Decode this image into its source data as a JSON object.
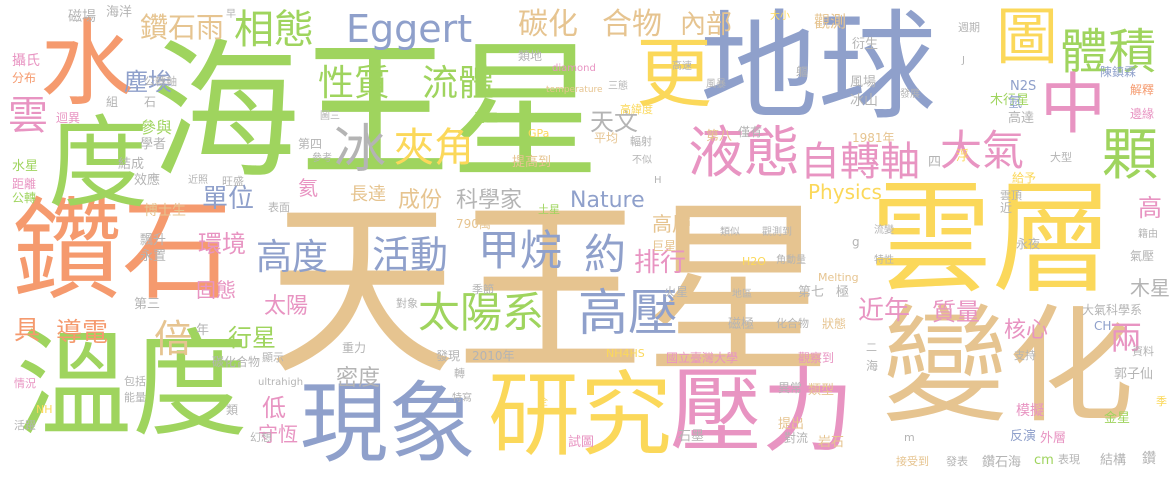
{
  "colors": {
    "orange": "#f59a6e",
    "green": "#9fd45e",
    "blue": "#8fa0cb",
    "pink": "#e894c2",
    "tan": "#e6c490",
    "yellow": "#fbd85a",
    "gray": "#b4b4b4"
  },
  "words": [
    {
      "t": "天王星",
      "c": "tan"
    },
    {
      "t": "海王星",
      "c": "green"
    },
    {
      "t": "地球",
      "c": "blue"
    },
    {
      "t": "雲層",
      "c": "yellow"
    },
    {
      "t": "鑽石",
      "c": "orange"
    },
    {
      "t": "變化",
      "c": "tan"
    },
    {
      "t": "溫度",
      "c": "green"
    },
    {
      "t": "度",
      "c": "green"
    },
    {
      "t": "水",
      "c": "orange"
    },
    {
      "t": "研究",
      "c": "yellow"
    },
    {
      "t": "壓力",
      "c": "pink"
    },
    {
      "t": "現象",
      "c": "blue"
    },
    {
      "t": "更",
      "c": "yellow"
    },
    {
      "t": "圖",
      "c": "yellow"
    },
    {
      "t": "體積",
      "c": "green"
    },
    {
      "t": "中",
      "c": "pink"
    },
    {
      "t": "液態",
      "c": "pink"
    },
    {
      "t": "自轉軸",
      "c": "pink"
    },
    {
      "t": "大氣",
      "c": "pink"
    },
    {
      "t": "顆",
      "c": "green"
    },
    {
      "t": "太陽系",
      "c": "green"
    },
    {
      "t": "高壓",
      "c": "blue"
    },
    {
      "t": "甲烷",
      "c": "blue"
    },
    {
      "t": "活動",
      "c": "blue"
    },
    {
      "t": "高度",
      "c": "blue"
    },
    {
      "t": "相態",
      "c": "green"
    },
    {
      "t": "Eggert",
      "c": "blue"
    },
    {
      "t": "碳化",
      "c": "tan"
    },
    {
      "t": "合物",
      "c": "tan"
    },
    {
      "t": "內部",
      "c": "tan"
    },
    {
      "t": "性質",
      "c": "green"
    },
    {
      "t": "流體",
      "c": "green"
    },
    {
      "t": "冰",
      "c": "gray"
    },
    {
      "t": "夾角",
      "c": "yellow"
    },
    {
      "t": "天文",
      "c": "gray"
    },
    {
      "t": "鑽石雨",
      "c": "tan"
    },
    {
      "t": "塵埃",
      "c": "blue"
    },
    {
      "t": "雲",
      "c": "pink"
    },
    {
      "t": "倍",
      "c": "tan"
    },
    {
      "t": "單位",
      "c": "blue"
    },
    {
      "t": "環境",
      "c": "pink"
    },
    {
      "t": "固態",
      "c": "pink"
    },
    {
      "t": "太陽",
      "c": "pink"
    },
    {
      "t": "行星",
      "c": "green"
    },
    {
      "t": "具",
      "c": "orange"
    },
    {
      "t": "導電",
      "c": "orange"
    },
    {
      "t": "約",
      "c": "blue"
    },
    {
      "t": "排行",
      "c": "pink"
    },
    {
      "t": "近年",
      "c": "pink"
    },
    {
      "t": "質量",
      "c": "pink"
    },
    {
      "t": "核心",
      "c": "pink"
    },
    {
      "t": "兩",
      "c": "pink"
    },
    {
      "t": "成份",
      "c": "tan"
    },
    {
      "t": "科學家",
      "c": "gray"
    },
    {
      "t": "Nature",
      "c": "blue"
    },
    {
      "t": "密度",
      "c": "gray"
    },
    {
      "t": "低",
      "c": "pink"
    },
    {
      "t": "守恆",
      "c": "pink"
    },
    {
      "t": "氦",
      "c": "pink"
    },
    {
      "t": "長達",
      "c": "tan"
    },
    {
      "t": "Physics",
      "c": "yellow"
    },
    {
      "t": "高層",
      "c": "tan"
    },
    {
      "t": "高",
      "c": "pink"
    },
    {
      "t": "木星",
      "c": "gray"
    },
    {
      "t": "磁場",
      "c": "gray"
    },
    {
      "t": "海洋",
      "c": "gray"
    },
    {
      "t": "攝氏",
      "c": "pink"
    },
    {
      "t": "分布",
      "c": "orange"
    },
    {
      "t": "迴異",
      "c": "pink"
    },
    {
      "t": "水星",
      "c": "green"
    },
    {
      "t": "距離",
      "c": "pink"
    },
    {
      "t": "公轉",
      "c": "green"
    },
    {
      "t": "結成",
      "c": "gray"
    },
    {
      "t": "效應",
      "c": "gray"
    },
    {
      "t": "參與",
      "c": "green"
    },
    {
      "t": "學者",
      "c": "gray"
    },
    {
      "t": "博士生",
      "c": "tan"
    },
    {
      "t": "飄升",
      "c": "gray"
    },
    {
      "t": "永置",
      "c": "gray"
    },
    {
      "t": "第三",
      "c": "gray"
    },
    {
      "t": "觀測",
      "c": "tan"
    },
    {
      "t": "衍生",
      "c": "gray"
    },
    {
      "t": "風場",
      "c": "gray"
    },
    {
      "t": "冰山",
      "c": "gray"
    },
    {
      "t": "木行星",
      "c": "green"
    },
    {
      "t": "N2S",
      "c": "blue"
    },
    {
      "t": "陳鎮霖",
      "c": "blue"
    },
    {
      "t": "氫",
      "c": "blue"
    },
    {
      "t": "解釋",
      "c": "orange"
    },
    {
      "t": "邊緣",
      "c": "pink"
    },
    {
      "t": "高達",
      "c": "gray"
    },
    {
      "t": "大型",
      "c": "gray"
    },
    {
      "t": "給予",
      "c": "yellow"
    },
    {
      "t": "雲頂",
      "c": "gray"
    },
    {
      "t": "近",
      "c": "gray"
    },
    {
      "t": "永夜",
      "c": "gray"
    },
    {
      "t": "氣壓",
      "c": "gray"
    },
    {
      "t": "大氣科學系",
      "c": "gray"
    },
    {
      "t": "CH",
      "c": "blue"
    },
    {
      "t": "資料",
      "c": "gray"
    },
    {
      "t": "郭子仙",
      "c": "gray"
    },
    {
      "t": "金星",
      "c": "green"
    },
    {
      "t": "外層",
      "c": "pink"
    },
    {
      "t": "結構",
      "c": "gray"
    },
    {
      "t": "鑽",
      "c": "gray"
    },
    {
      "t": "反演",
      "c": "blue"
    },
    {
      "t": "模擬",
      "c": "pink"
    },
    {
      "t": "鑽石海",
      "c": "gray"
    },
    {
      "t": "岩石",
      "c": "tan"
    },
    {
      "t": "表現",
      "c": "gray"
    },
    {
      "t": "石墨",
      "c": "gray"
    },
    {
      "t": "發表",
      "c": "gray"
    },
    {
      "t": "接受到",
      "c": "tan"
    },
    {
      "t": "國立臺灣大學",
      "c": "pink"
    },
    {
      "t": "觀察到",
      "c": "pink"
    },
    {
      "t": "異常",
      "c": "gray"
    },
    {
      "t": "類型",
      "c": "tan"
    },
    {
      "t": "提出",
      "c": "tan"
    },
    {
      "t": "對流",
      "c": "gray"
    },
    {
      "t": "試圖",
      "c": "pink"
    },
    {
      "t": "2010年",
      "c": "gray"
    },
    {
      "t": "發現",
      "c": "gray"
    },
    {
      "t": "重力",
      "c": "gray"
    },
    {
      "t": "顯示",
      "c": "gray"
    },
    {
      "t": "碳化合物",
      "c": "gray"
    },
    {
      "t": "包括",
      "c": "gray"
    },
    {
      "t": "能量",
      "c": "gray"
    },
    {
      "t": "情況",
      "c": "pink"
    },
    {
      "t": "活躍",
      "c": "gray"
    },
    {
      "t": "幻想",
      "c": "gray"
    },
    {
      "t": "類",
      "c": "gray"
    },
    {
      "t": "ultrahigh",
      "c": "gray"
    },
    {
      "t": "NH",
      "c": "yellow"
    },
    {
      "t": "790萬",
      "c": "tan"
    },
    {
      "t": "土星",
      "c": "green"
    },
    {
      "t": "巨星",
      "c": "tan"
    },
    {
      "t": "火星",
      "c": "gray"
    },
    {
      "t": "季節",
      "c": "gray"
    },
    {
      "t": "對象",
      "c": "gray"
    },
    {
      "t": "年",
      "c": "gray"
    },
    {
      "t": "第七",
      "c": "gray"
    },
    {
      "t": "極",
      "c": "gray"
    },
    {
      "t": "磁極",
      "c": "gray"
    },
    {
      "t": "化合物",
      "c": "gray"
    },
    {
      "t": "狀態",
      "c": "tan"
    },
    {
      "t": "二",
      "c": "gray"
    },
    {
      "t": "海",
      "c": "gray"
    },
    {
      "t": "支持",
      "c": "gray"
    },
    {
      "t": "Melting",
      "c": "tan"
    },
    {
      "t": "NH4HS",
      "c": "yellow"
    },
    {
      "t": "地區",
      "c": "gray"
    },
    {
      "t": "H2O",
      "c": "yellow"
    },
    {
      "t": "角動量",
      "c": "gray"
    },
    {
      "t": "類似",
      "c": "gray"
    },
    {
      "t": "觀測到",
      "c": "gray"
    },
    {
      "t": "流變",
      "c": "gray"
    },
    {
      "t": "特性",
      "c": "gray"
    },
    {
      "t": "籍由",
      "c": "gray"
    },
    {
      "t": "第八",
      "c": "tan"
    },
    {
      "t": "僅有",
      "c": "gray"
    },
    {
      "t": "1981年",
      "c": "tan"
    },
    {
      "t": "四",
      "c": "gray"
    },
    {
      "t": "浮",
      "c": "yellow"
    },
    {
      "t": "提高到",
      "c": "tan"
    },
    {
      "t": "平均",
      "c": "tan"
    },
    {
      "t": "輻射",
      "c": "gray"
    },
    {
      "t": "高緯度",
      "c": "yellow"
    },
    {
      "t": "GPa",
      "c": "yellow"
    },
    {
      "t": "海王",
      "c": "green"
    },
    {
      "t": "三態",
      "c": "gray"
    },
    {
      "t": "不似",
      "c": "gray"
    },
    {
      "t": "第四",
      "c": "gray"
    },
    {
      "t": "參考",
      "c": "gray"
    },
    {
      "t": "圖三",
      "c": "gray"
    },
    {
      "t": "近照",
      "c": "gray"
    },
    {
      "t": "旺盛",
      "c": "gray"
    },
    {
      "t": "表面",
      "c": "gray"
    },
    {
      "t": "diamond",
      "c": "pink"
    },
    {
      "t": "temperature",
      "c": "tan"
    },
    {
      "t": "高速",
      "c": "gray"
    },
    {
      "t": "風暴",
      "c": "gray"
    },
    {
      "t": "類地",
      "c": "gray"
    },
    {
      "t": "公轉軸",
      "c": "gray"
    },
    {
      "t": "石",
      "c": "gray"
    },
    {
      "t": "組",
      "c": "gray"
    },
    {
      "t": "早",
      "c": "gray"
    },
    {
      "t": "大小",
      "c": "yellow"
    },
    {
      "t": "週期",
      "c": "gray"
    },
    {
      "t": "發展",
      "c": "gray"
    },
    {
      "t": "m",
      "c": "gray"
    },
    {
      "t": "g",
      "c": "gray"
    },
    {
      "t": "cm",
      "c": "green"
    },
    {
      "t": "季",
      "c": "yellow"
    },
    {
      "t": "轉",
      "c": "gray"
    },
    {
      "t": "全",
      "c": "yellow"
    },
    {
      "t": "特寫",
      "c": "gray"
    },
    {
      "t": "H",
      "c": "gray"
    },
    {
      "t": "J",
      "c": "gray"
    },
    {
      "t": "軀",
      "c": "gray"
    }
  ]
}
